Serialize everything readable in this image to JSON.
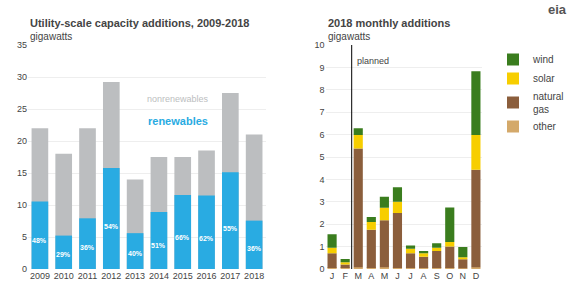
{
  "chart_data": [
    {
      "type": "bar",
      "stacked": false,
      "title": "Utility-scale capacity additions, 2009-2018",
      "ylabel": "gigawatts",
      "categories": [
        "2009",
        "2010",
        "2011",
        "2012",
        "2013",
        "2014",
        "2015",
        "2016",
        "2017",
        "2018"
      ],
      "series": [
        {
          "name": "nonrenewables",
          "color": "#BCBEC0",
          "values": [
            22.0,
            18.0,
            22.0,
            29.2,
            14.0,
            17.5,
            17.5,
            18.5,
            27.5,
            21.0
          ]
        },
        {
          "name": "renewables",
          "color": "#29ABE2",
          "values": [
            10.56,
            5.22,
            7.92,
            15.768,
            5.6,
            8.925,
            11.55,
            11.47,
            15.125,
            7.56
          ]
        }
      ],
      "annotations": [
        {
          "x": "2009",
          "text": "48%"
        },
        {
          "x": "2010",
          "text": "29%"
        },
        {
          "x": "2011",
          "text": "36%"
        },
        {
          "x": "2012",
          "text": "54%"
        },
        {
          "x": "2013",
          "text": "40%"
        },
        {
          "x": "2014",
          "text": "51%"
        },
        {
          "x": "2015",
          "text": "66%"
        },
        {
          "x": "2016",
          "text": "62%"
        },
        {
          "x": "2017",
          "text": "55%"
        },
        {
          "x": "2018",
          "text": "36%"
        }
      ],
      "ylim": [
        0,
        35
      ],
      "yticks": [
        0,
        5,
        10,
        15,
        20,
        25,
        30,
        35
      ],
      "grid": true
    },
    {
      "type": "bar",
      "stacked": true,
      "title": "2018 monthly additions",
      "ylabel": "gigawatts",
      "categories": [
        "J",
        "F",
        "M",
        "A",
        "M",
        "J",
        "J",
        "A",
        "S",
        "O",
        "N",
        "D"
      ],
      "series": [
        {
          "name": "other",
          "color": "#D4A96A",
          "values": [
            0.05,
            0.05,
            0.08,
            0.05,
            0.08,
            0.05,
            0.05,
            0.05,
            0.05,
            0.05,
            0.03,
            0.08
          ]
        },
        {
          "name": "natural\ngas",
          "color": "#8B5E3C",
          "values": [
            0.65,
            0.15,
            5.3,
            1.7,
            2.1,
            2.45,
            0.65,
            0.5,
            0.75,
            0.95,
            0.4,
            4.35
          ]
        },
        {
          "name": "solar",
          "color": "#F7CE00",
          "values": [
            0.25,
            0.1,
            0.6,
            0.35,
            0.55,
            0.5,
            0.2,
            0.15,
            0.15,
            0.2,
            0.1,
            1.55
          ]
        },
        {
          "name": "wind",
          "color": "#3A7D1E",
          "values": [
            0.6,
            0.15,
            0.3,
            0.22,
            0.5,
            0.65,
            0.15,
            0.1,
            0.2,
            1.55,
            0.45,
            2.85
          ]
        }
      ],
      "vlines": [
        {
          "x": 1.5,
          "label": "planned"
        }
      ],
      "annotations": [
        {
          "text": "eia"
        }
      ],
      "ylim": [
        0,
        10
      ],
      "yticks": [
        0,
        1,
        2,
        3,
        4,
        5,
        6,
        7,
        8,
        9,
        10
      ],
      "grid": true,
      "legend": "right"
    }
  ]
}
